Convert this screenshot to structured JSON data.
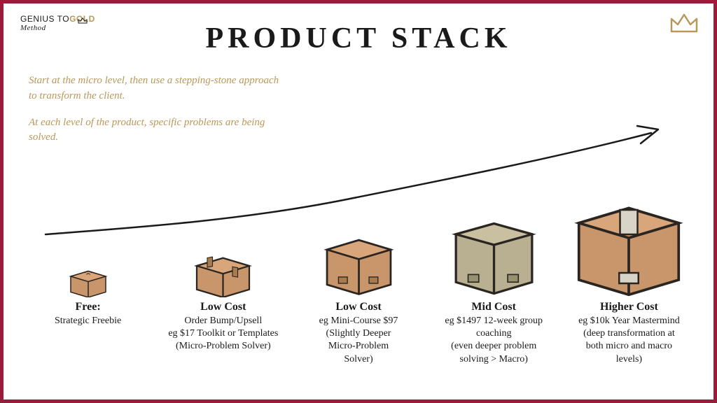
{
  "colors": {
    "border": "#9b1b3a",
    "gold": "#b8985a",
    "text": "#1a1a1a",
    "box_main": "#c8966a",
    "box_alt": "#b8b090",
    "box_stroke": "#2a2520",
    "background": "#ffffff"
  },
  "logo": {
    "line1_a": "GENIUS TO",
    "line1_b": "GOLD",
    "line2": "Method"
  },
  "title": "PRODUCT STACK",
  "intro": {
    "p1": "Start at the micro level, then use a stepping-stone approach to transform the client.",
    "p2": "At each level of the product, specific problems are being solved."
  },
  "tiers": [
    {
      "title": "Free:",
      "desc": "Strategic Freebie",
      "box_size": 50,
      "box_color": "#c8966a"
    },
    {
      "title": "Low Cost",
      "desc": "Order Bump/Upsell\neg $17 Toolkit or Templates\n(Micro-Problem Solver)",
      "box_size": 78,
      "box_color": "#c8966a"
    },
    {
      "title": "Low Cost",
      "desc": "eg Mini-Course $97\n(Slightly Deeper\nMicro-Problem\nSolver)",
      "box_size": 100,
      "box_color": "#c8966a"
    },
    {
      "title": "Mid Cost",
      "desc": "eg $1497 12-week group\ncoaching\n(even deeper problem\nsolving > Macro)",
      "box_size": 120,
      "box_color": "#b8b090"
    },
    {
      "title": "Higher Cost",
      "desc": "eg $10k Year Mastermind\n(deep transformation at\nboth micro and macro\nlevels)",
      "box_size": 150,
      "box_color": "#c8966a",
      "tape_color": "#d8d4c8"
    }
  ],
  "arrow": {
    "stroke": "#1a1a1a",
    "width": 2.5
  }
}
